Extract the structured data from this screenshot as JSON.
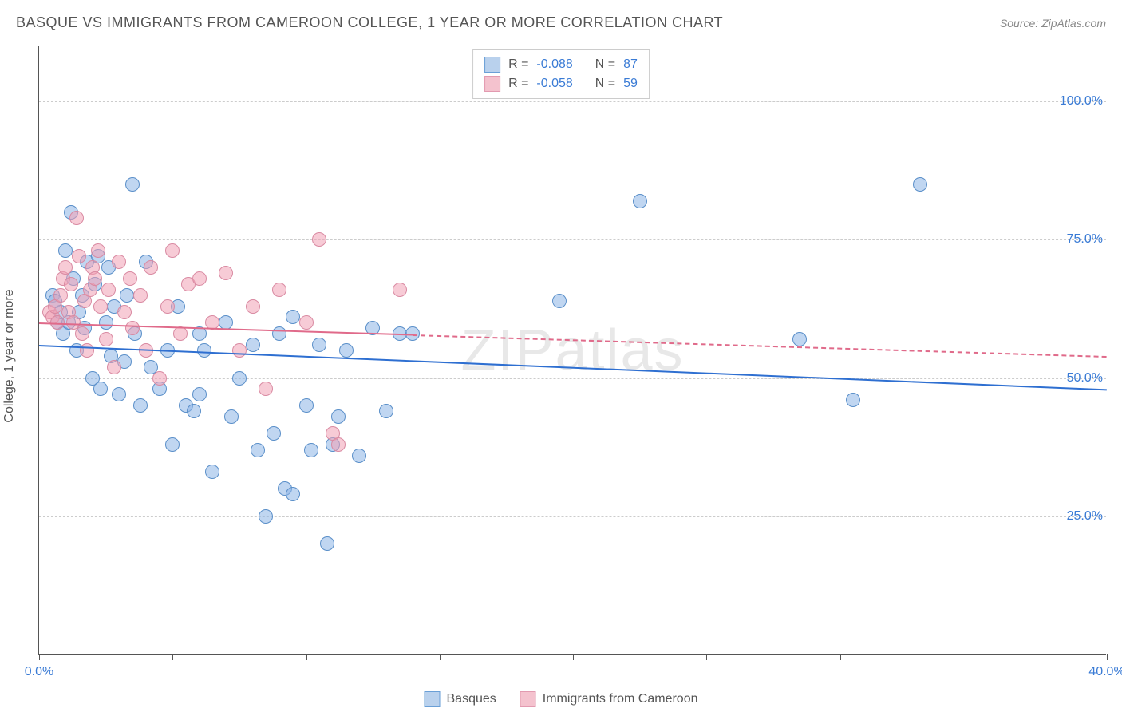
{
  "title": "BASQUE VS IMMIGRANTS FROM CAMEROON COLLEGE, 1 YEAR OR MORE CORRELATION CHART",
  "source_label": "Source:",
  "source_name": "ZipAtlas.com",
  "watermark": "ZIPatlas",
  "ylabel": "College, 1 year or more",
  "chart": {
    "type": "scatter",
    "xlim": [
      0,
      40
    ],
    "ylim": [
      0,
      110
    ],
    "yticks": [
      25,
      50,
      75,
      100
    ],
    "ytick_labels": [
      "25.0%",
      "50.0%",
      "75.0%",
      "100.0%"
    ],
    "xtick_positions": [
      0,
      5,
      10,
      15,
      20,
      25,
      30,
      35,
      40
    ],
    "xtick_labels": {
      "0": "0.0%",
      "40": "40.0%"
    },
    "background_color": "#ffffff",
    "grid_color": "#cccccc",
    "axis_color": "#555555",
    "tick_label_color": "#3a7bd5"
  },
  "series": [
    {
      "name": "Basques",
      "marker_fill": "rgba(140, 180, 230, 0.55)",
      "marker_stroke": "#5a8fc9",
      "swatch_fill": "#b9d1ed",
      "swatch_stroke": "#6a9fd6",
      "line_color": "#2e6fd1",
      "R": "-0.088",
      "N": "87",
      "trend": {
        "x1": 0,
        "y1": 56,
        "x2": 40,
        "y2": 48
      },
      "dash_from_x": null,
      "points": [
        [
          0.5,
          65
        ],
        [
          0.6,
          64
        ],
        [
          0.7,
          60
        ],
        [
          0.8,
          62
        ],
        [
          0.9,
          58
        ],
        [
          1.0,
          73
        ],
        [
          1.1,
          60
        ],
        [
          1.2,
          80
        ],
        [
          1.3,
          68
        ],
        [
          1.4,
          55
        ],
        [
          1.5,
          62
        ],
        [
          1.6,
          65
        ],
        [
          1.7,
          59
        ],
        [
          1.8,
          71
        ],
        [
          2.0,
          50
        ],
        [
          2.1,
          67
        ],
        [
          2.2,
          72
        ],
        [
          2.3,
          48
        ],
        [
          2.5,
          60
        ],
        [
          2.6,
          70
        ],
        [
          2.7,
          54
        ],
        [
          2.8,
          63
        ],
        [
          3.0,
          47
        ],
        [
          3.2,
          53
        ],
        [
          3.3,
          65
        ],
        [
          3.5,
          85
        ],
        [
          3.6,
          58
        ],
        [
          3.8,
          45
        ],
        [
          4.0,
          71
        ],
        [
          4.2,
          52
        ],
        [
          4.5,
          48
        ],
        [
          4.8,
          55
        ],
        [
          5.0,
          38
        ],
        [
          5.2,
          63
        ],
        [
          5.5,
          45
        ],
        [
          5.8,
          44
        ],
        [
          6.0,
          58
        ],
        [
          6.0,
          47
        ],
        [
          6.2,
          55
        ],
        [
          6.5,
          33
        ],
        [
          7.0,
          60
        ],
        [
          7.2,
          43
        ],
        [
          7.5,
          50
        ],
        [
          8.0,
          56
        ],
        [
          8.2,
          37
        ],
        [
          8.5,
          25
        ],
        [
          8.8,
          40
        ],
        [
          9.0,
          58
        ],
        [
          9.2,
          30
        ],
        [
          9.5,
          61
        ],
        [
          9.5,
          29
        ],
        [
          10.0,
          45
        ],
        [
          10.2,
          37
        ],
        [
          10.5,
          56
        ],
        [
          10.8,
          20
        ],
        [
          11.0,
          38
        ],
        [
          11.2,
          43
        ],
        [
          11.5,
          55
        ],
        [
          12.0,
          36
        ],
        [
          12.5,
          59
        ],
        [
          13.0,
          44
        ],
        [
          13.5,
          58
        ],
        [
          14.0,
          58
        ],
        [
          19.5,
          64
        ],
        [
          22.5,
          82
        ],
        [
          28.5,
          57
        ],
        [
          30.5,
          46
        ],
        [
          33.0,
          85
        ]
      ]
    },
    {
      "name": "Immigrants from Cameroon",
      "marker_fill": "rgba(240, 160, 180, 0.55)",
      "marker_stroke": "#d98aa2",
      "swatch_fill": "#f4c2ce",
      "swatch_stroke": "#e29ab0",
      "line_color": "#e06a8a",
      "R": "-0.058",
      "N": "59",
      "trend": {
        "x1": 0,
        "y1": 60,
        "x2": 40,
        "y2": 54
      },
      "dash_from_x": 14,
      "points": [
        [
          0.4,
          62
        ],
        [
          0.5,
          61
        ],
        [
          0.6,
          63
        ],
        [
          0.7,
          60
        ],
        [
          0.8,
          65
        ],
        [
          0.9,
          68
        ],
        [
          1.0,
          70
        ],
        [
          1.1,
          62
        ],
        [
          1.2,
          67
        ],
        [
          1.3,
          60
        ],
        [
          1.4,
          79
        ],
        [
          1.5,
          72
        ],
        [
          1.6,
          58
        ],
        [
          1.7,
          64
        ],
        [
          1.8,
          55
        ],
        [
          1.9,
          66
        ],
        [
          2.0,
          70
        ],
        [
          2.1,
          68
        ],
        [
          2.2,
          73
        ],
        [
          2.3,
          63
        ],
        [
          2.5,
          57
        ],
        [
          2.6,
          66
        ],
        [
          2.8,
          52
        ],
        [
          3.0,
          71
        ],
        [
          3.2,
          62
        ],
        [
          3.4,
          68
        ],
        [
          3.5,
          59
        ],
        [
          3.8,
          65
        ],
        [
          4.0,
          55
        ],
        [
          4.2,
          70
        ],
        [
          4.5,
          50
        ],
        [
          4.8,
          63
        ],
        [
          5.0,
          73
        ],
        [
          5.3,
          58
        ],
        [
          5.6,
          67
        ],
        [
          6.0,
          68
        ],
        [
          6.5,
          60
        ],
        [
          7.0,
          69
        ],
        [
          7.5,
          55
        ],
        [
          8.0,
          63
        ],
        [
          8.5,
          48
        ],
        [
          9.0,
          66
        ],
        [
          10.0,
          60
        ],
        [
          10.5,
          75
        ],
        [
          11.0,
          40
        ],
        [
          11.2,
          38
        ],
        [
          13.5,
          66
        ]
      ]
    }
  ],
  "legend_labels": {
    "R": "R =",
    "N": "N ="
  }
}
